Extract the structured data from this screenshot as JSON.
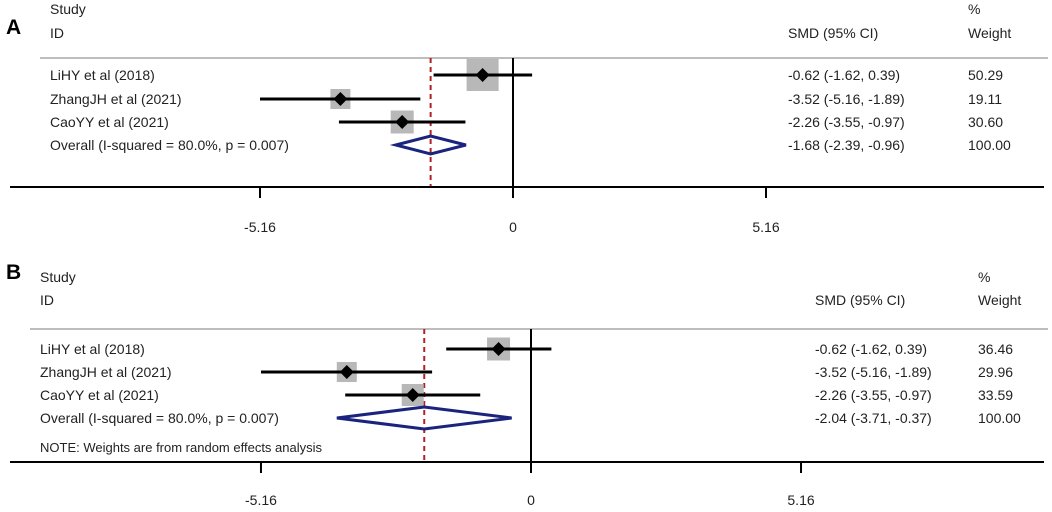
{
  "chart_data": [
    {
      "type": "forest",
      "panel_label": "A",
      "headers": {
        "study_line1": "Study",
        "study_line2": "ID",
        "effect": "SMD (95% CI)",
        "weight_line1": "%",
        "weight_line2": "Weight"
      },
      "studies": [
        {
          "label": "LiHY et al (2018)",
          "smd": -0.62,
          "lo": -1.62,
          "hi": 0.39,
          "ci_text": "-0.62 (-1.62, 0.39)",
          "weight": "50.29"
        },
        {
          "label": "ZhangJH et al (2021)",
          "smd": -3.52,
          "lo": -5.16,
          "hi": -1.89,
          "ci_text": "-3.52 (-5.16, -1.89)",
          "weight": "19.11"
        },
        {
          "label": "CaoYY et al (2021)",
          "smd": -2.26,
          "lo": -3.55,
          "hi": -0.97,
          "ci_text": "-2.26 (-3.55, -0.97)",
          "weight": "30.60"
        }
      ],
      "overall": {
        "label": "Overall  (I-squared = 80.0%, p = 0.007)",
        "smd": -1.68,
        "lo": -2.39,
        "hi": -0.96,
        "ci_text": "-1.68 (-2.39, -0.96)",
        "weight": "100.00"
      },
      "xticks": [
        -5.16,
        0,
        5.16
      ],
      "xtick_labels": [
        "-5.16",
        "0",
        "5.16"
      ],
      "note": ""
    },
    {
      "type": "forest",
      "panel_label": "B",
      "headers": {
        "study_line1": "Study",
        "study_line2": "ID",
        "effect": "SMD (95% CI)",
        "weight_line1": "%",
        "weight_line2": "Weight"
      },
      "studies": [
        {
          "label": "LiHY et al (2018)",
          "smd": -0.62,
          "lo": -1.62,
          "hi": 0.39,
          "ci_text": "-0.62 (-1.62, 0.39)",
          "weight": "36.46"
        },
        {
          "label": "ZhangJH et al (2021)",
          "smd": -3.52,
          "lo": -5.16,
          "hi": -1.89,
          "ci_text": "-3.52 (-5.16, -1.89)",
          "weight": "29.96"
        },
        {
          "label": "CaoYY et al (2021)",
          "smd": -2.26,
          "lo": -3.55,
          "hi": -0.97,
          "ci_text": "-2.26 (-3.55, -0.97)",
          "weight": "33.59"
        }
      ],
      "overall": {
        "label": "Overall  (I-squared = 80.0%, p = 0.007)",
        "smd": -2.04,
        "lo": -3.71,
        "hi": -0.37,
        "ci_text": "-2.04 (-3.71, -0.37)",
        "weight": "100.00"
      },
      "xticks": [
        -5.16,
        0,
        5.16
      ],
      "xtick_labels": [
        "-5.16",
        "0",
        "5.16"
      ],
      "note": "NOTE: Weights are from random effects analysis"
    }
  ],
  "colors": {
    "ci_line": "#000000",
    "weight_box": "#b8b8b8",
    "diamond": "#1a237e",
    "overall_line": "#b22222",
    "rule": "#bdbdbd",
    "axis": "#000000"
  }
}
